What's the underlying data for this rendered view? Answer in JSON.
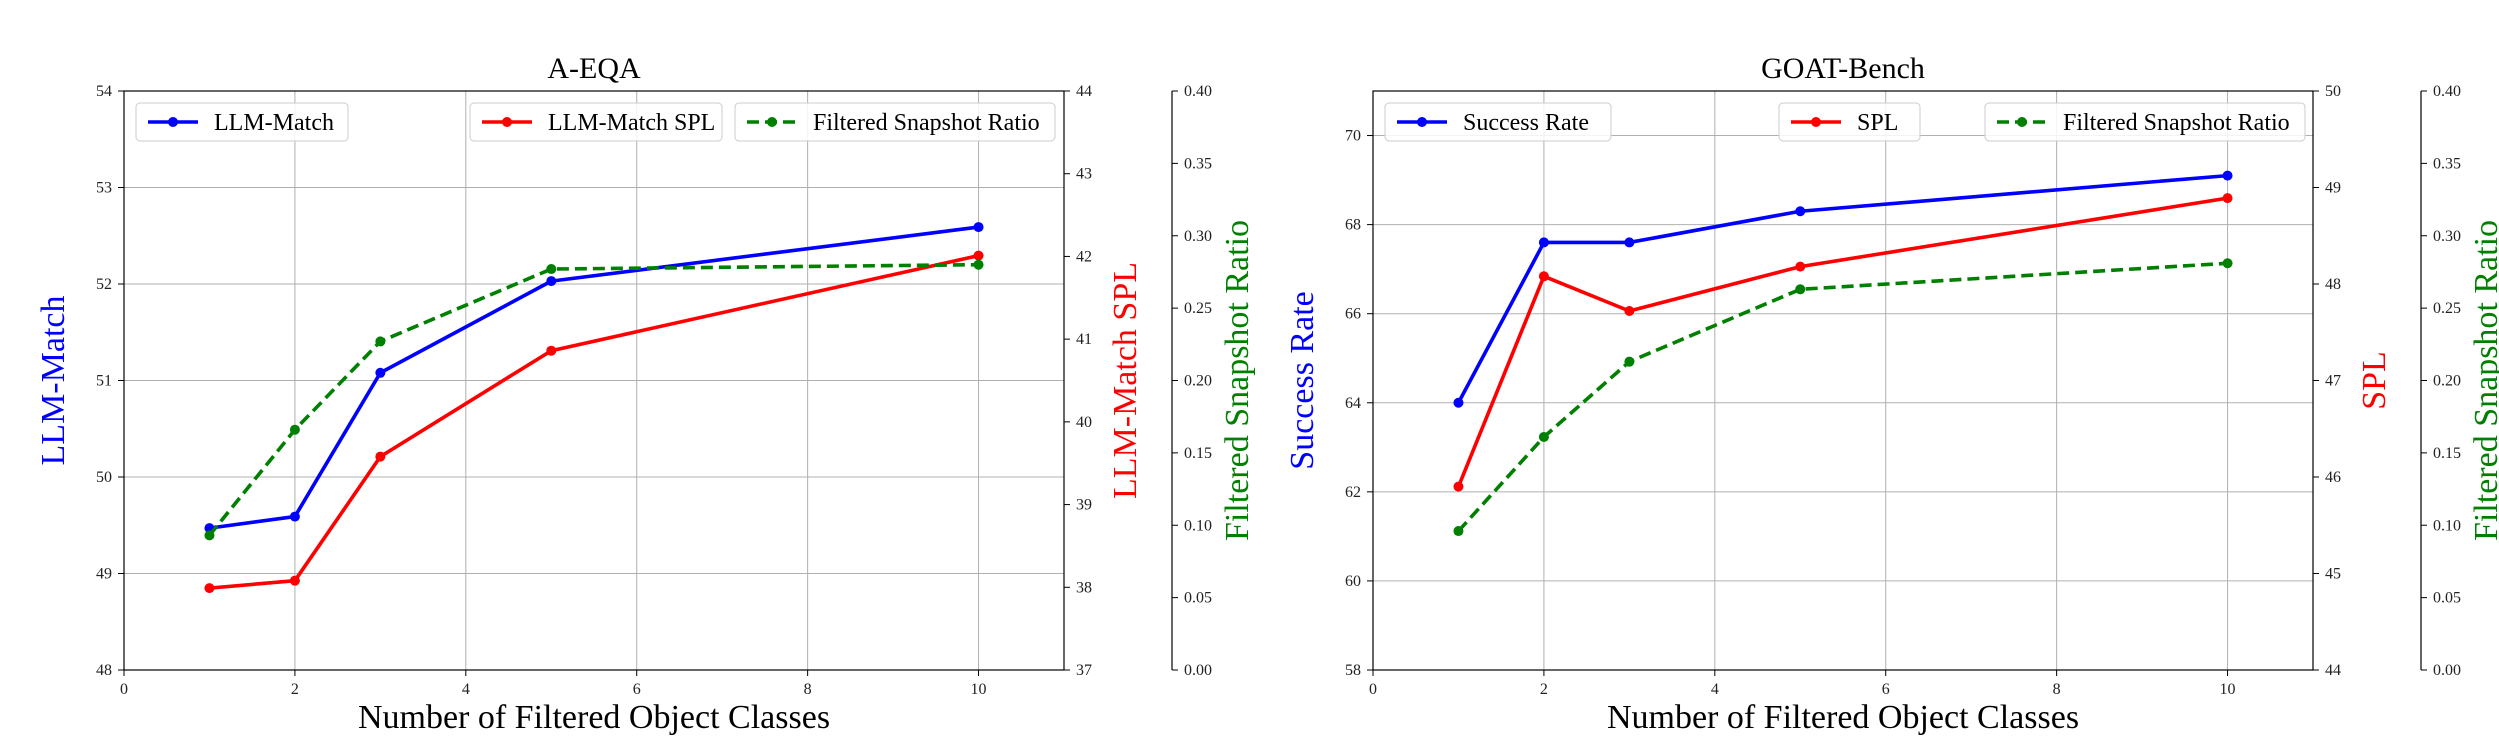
{
  "chart_data": [
    {
      "type": "line",
      "title": "A-EQA",
      "xlabel": "Number of Filtered Object Classes",
      "x": [
        1,
        2,
        3,
        5,
        10
      ],
      "xlim": [
        0,
        11
      ],
      "xticks": [
        0,
        2,
        4,
        6,
        8,
        10
      ],
      "grid": true,
      "axes": [
        {
          "id": "left",
          "label": "LLM-Match",
          "color": "#0000ff",
          "ylim": [
            48,
            54
          ],
          "ticks": [
            48,
            49,
            50,
            51,
            52,
            53,
            54
          ],
          "decimals": 0
        },
        {
          "id": "right1",
          "label": "LLM-Match SPL",
          "color": "#ff0000",
          "ylim": [
            37,
            44
          ],
          "ticks": [
            37,
            38,
            39,
            40,
            41,
            42,
            43,
            44
          ],
          "decimals": 0
        },
        {
          "id": "right2",
          "label": "Filtered Snapshot Ratio",
          "color": "#008000",
          "ylim": [
            0.0,
            0.4
          ],
          "ticks": [
            0.0,
            0.05,
            0.1,
            0.15,
            0.2,
            0.25,
            0.3,
            0.35,
            0.4
          ],
          "decimals": 2
        }
      ],
      "series": [
        {
          "name": "LLM-Match",
          "axis": "left",
          "color": "#0000ff",
          "dashed": false,
          "values": [
            49.47,
            49.59,
            51.08,
            52.03,
            52.59
          ]
        },
        {
          "name": "LLM-Match SPL",
          "axis": "right1",
          "color": "#ff0000",
          "dashed": false,
          "values": [
            37.99,
            38.08,
            39.58,
            40.86,
            42.01
          ]
        },
        {
          "name": "Filtered Snapshot Ratio",
          "axis": "right2",
          "color": "#008000",
          "dashed": true,
          "values": [
            0.093,
            0.166,
            0.227,
            0.277,
            0.28
          ]
        }
      ],
      "legend": [
        {
          "position": "top-left",
          "entries": [
            0
          ]
        },
        {
          "position": "top-center",
          "entries": [
            1
          ]
        },
        {
          "position": "top-right",
          "entries": [
            2
          ]
        }
      ]
    },
    {
      "type": "line",
      "title": "GOAT-Bench",
      "xlabel": "Number of Filtered Object Classes",
      "x": [
        1,
        2,
        3,
        5,
        10
      ],
      "xlim": [
        0,
        11
      ],
      "xticks": [
        0,
        2,
        4,
        6,
        8,
        10
      ],
      "grid": true,
      "axes": [
        {
          "id": "left",
          "label": "Success Rate",
          "color": "#0000ff",
          "ylim": [
            58,
            71
          ],
          "ticks": [
            58,
            60,
            62,
            64,
            66,
            68,
            70
          ],
          "decimals": 0
        },
        {
          "id": "right1",
          "label": "SPL",
          "color": "#ff0000",
          "ylim": [
            44,
            50
          ],
          "ticks": [
            44,
            45,
            46,
            47,
            48,
            49,
            50
          ],
          "decimals": 0
        },
        {
          "id": "right2",
          "label": "Filtered Snapshot Ratio",
          "color": "#008000",
          "ylim": [
            0.0,
            0.4
          ],
          "ticks": [
            0.0,
            0.05,
            0.1,
            0.15,
            0.2,
            0.25,
            0.3,
            0.35,
            0.4
          ],
          "decimals": 2
        }
      ],
      "series": [
        {
          "name": "Success Rate",
          "axis": "left",
          "color": "#0000ff",
          "dashed": false,
          "values": [
            64.0,
            67.6,
            67.6,
            68.3,
            69.1
          ]
        },
        {
          "name": "SPL",
          "axis": "right1",
          "color": "#ff0000",
          "dashed": false,
          "values": [
            45.9,
            48.08,
            47.72,
            48.18,
            48.89
          ]
        },
        {
          "name": "Filtered Snapshot Ratio",
          "axis": "right2",
          "color": "#008000",
          "dashed": true,
          "values": [
            0.096,
            0.161,
            0.213,
            0.263,
            0.281
          ]
        }
      ],
      "legend": [
        {
          "position": "top-left",
          "entries": [
            0
          ]
        },
        {
          "position": "top-center",
          "entries": [
            1
          ]
        },
        {
          "position": "top-right",
          "entries": [
            2
          ]
        }
      ]
    }
  ]
}
